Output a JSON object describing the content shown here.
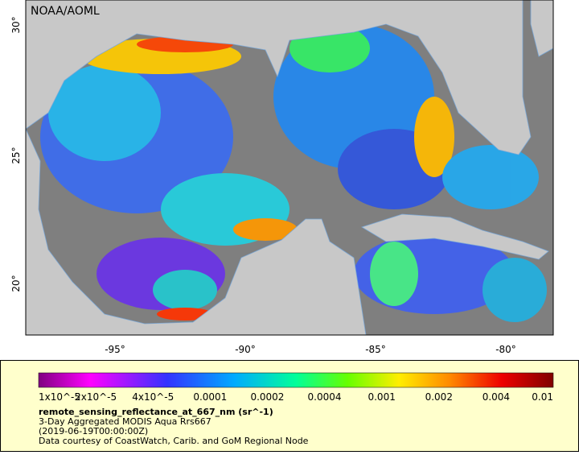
{
  "map": {
    "credit": "NOAA/AOML",
    "lat_labels": [
      "30°",
      "25°",
      "20°"
    ],
    "lon_labels": [
      "-95°",
      "-90°",
      "-85°",
      "-80°"
    ]
  },
  "colorbar": {
    "labels": [
      "1x10^-5",
      "2x10^-5",
      "4x10^-5",
      "0.0001",
      "0.0002",
      "0.0004",
      "0.001",
      "0.002",
      "0.004",
      "0.01"
    ]
  },
  "legend": {
    "variable": "remote_sensing_reflectance_at_667_nm (sr^-1)",
    "dataset": "3-Day Aggregated MODIS Aqua Rrs667",
    "time": "(2019-06-19T00:00:00Z)",
    "credit": "Data courtesy of CoastWatch, Carib. and GoM Regional Node"
  }
}
